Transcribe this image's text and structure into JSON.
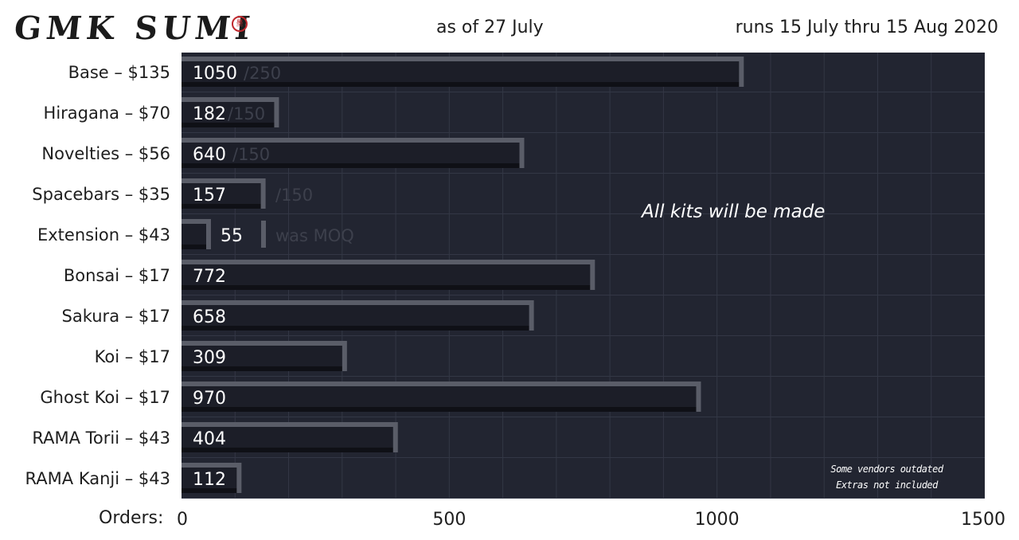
{
  "header": {
    "logo_text": "GMK SUMI",
    "seal_glyph": "墨",
    "subtitle": "as of 27 July",
    "runs": "runs 15 July thru 15 Aug 2020"
  },
  "annotation": "All kits will be made",
  "notes": [
    "Some vendors outdated",
    "Extras not included"
  ],
  "colors": {
    "plot_bg": "#222531",
    "bar_face": "#1c1e28",
    "bar_edge": "#5a5d68",
    "bar_shadow": "#0f1016",
    "grid": "#333745",
    "target_text": "#3d404c",
    "seal": "#c0282d"
  },
  "chart_data": {
    "type": "bar",
    "orientation": "horizontal",
    "xlabel": "Orders:",
    "xlim": [
      0,
      1500
    ],
    "xticks": [
      0,
      500,
      1000,
      1500
    ],
    "grid": true,
    "categories": [
      "Base – $135",
      "Hiragana – $70",
      "Novelties – $56",
      "Spacebars – $35",
      "Extension – $43",
      "Bonsai – $17",
      "Sakura – $17",
      "Koi – $17",
      "Ghost Koi – $17",
      "RAMA Torii – $43",
      "RAMA Kanji – $43"
    ],
    "values": [
      1050,
      182,
      640,
      157,
      55,
      772,
      658,
      309,
      970,
      404,
      112
    ],
    "value_labels": [
      "1050",
      "182",
      "640",
      "157",
      "55",
      "772",
      "658",
      "309",
      "970",
      "404",
      "112"
    ],
    "target_labels": [
      "/250",
      "/150",
      "/150",
      "/150",
      "was MOQ",
      "",
      "",
      "",
      "",
      "",
      ""
    ]
  }
}
